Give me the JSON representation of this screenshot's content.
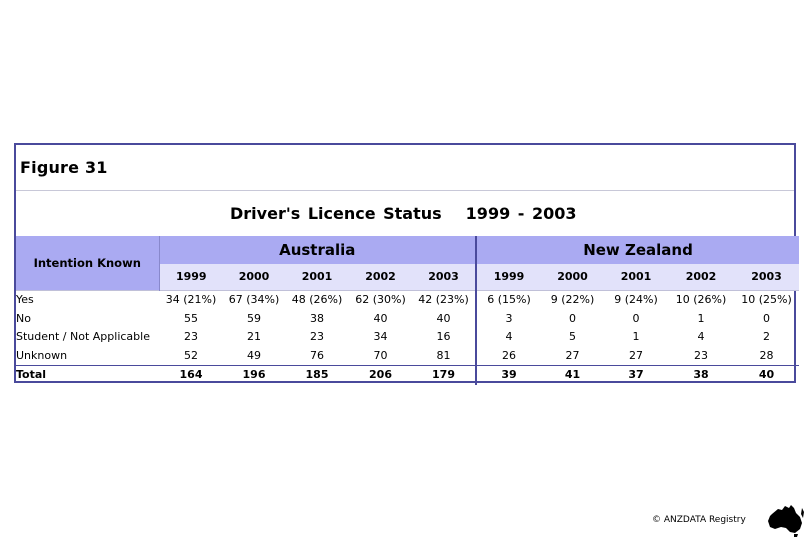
{
  "figure_label": "Figure 31",
  "title": "Driver's Licence Status",
  "title_years": "1999 - 2003",
  "stub_header": "Intention Known",
  "groups": [
    "Australia",
    "New Zealand"
  ],
  "years": [
    "1999",
    "2000",
    "2001",
    "2002",
    "2003"
  ],
  "rows": [
    {
      "label": "Yes",
      "au": [
        "34 (21%)",
        "67 (34%)",
        "48 (26%)",
        "62 (30%)",
        "42 (23%)"
      ],
      "nz": [
        "6 (15%)",
        "9 (22%)",
        "9 (24%)",
        "10 (26%)",
        "10 (25%)"
      ]
    },
    {
      "label": "No",
      "au": [
        "55",
        "59",
        "38",
        "40",
        "40"
      ],
      "nz": [
        "3",
        "0",
        "0",
        "1",
        "0"
      ]
    },
    {
      "label": "Student / Not Applicable",
      "au": [
        "23",
        "21",
        "23",
        "34",
        "16"
      ],
      "nz": [
        "4",
        "5",
        "1",
        "4",
        "2"
      ]
    },
    {
      "label": "Unknown",
      "au": [
        "52",
        "49",
        "76",
        "70",
        "81"
      ],
      "nz": [
        "26",
        "27",
        "27",
        "23",
        "28"
      ]
    },
    {
      "label": "Total",
      "au": [
        "164",
        "196",
        "185",
        "206",
        "179"
      ],
      "nz": [
        "39",
        "41",
        "37",
        "38",
        "40"
      ]
    }
  ],
  "copyright": "© ANZDATA Registry",
  "logo_icon": "australia-map-icon"
}
